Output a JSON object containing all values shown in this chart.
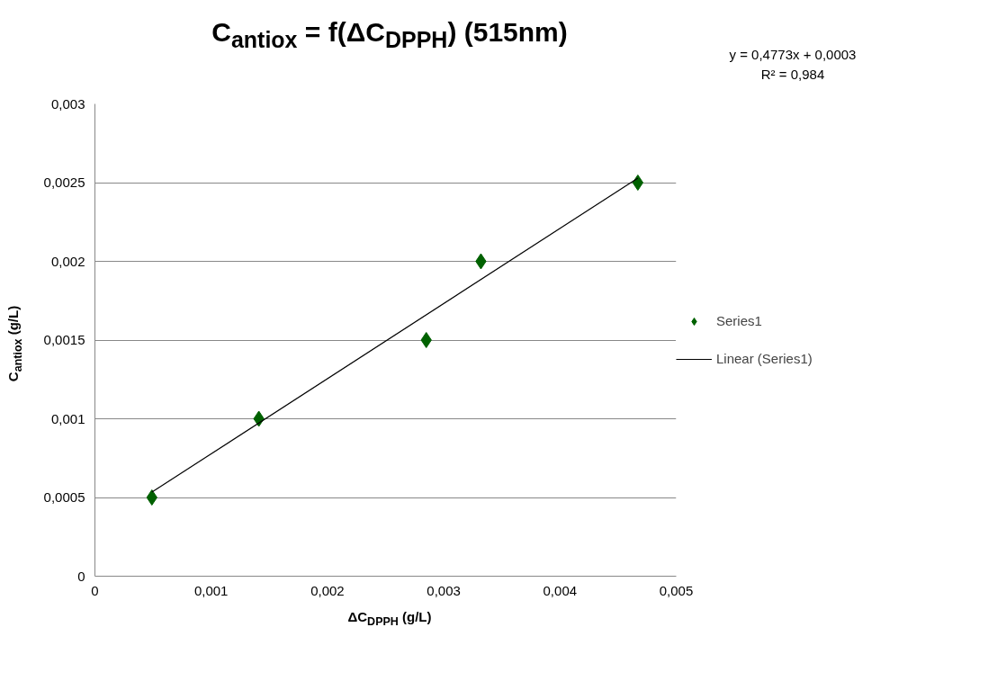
{
  "chart_data": {
    "type": "scatter",
    "title": "C$_{antiox}$ = f(ΔC$_{DPPH}$) (515nm)",
    "xlabel": "ΔC$_{DPPH}$ (g/L)",
    "ylabel": "C$_{antiox}$ (g/L)",
    "series": [
      {
        "name": "Series1",
        "color": "#006100",
        "marker": "diamond",
        "x": [
          0.00049,
          0.00141,
          0.00285,
          0.00332,
          0.00467
        ],
        "values": [
          0.0005,
          0.001,
          0.0015,
          0.002,
          0.0025
        ]
      },
      {
        "name": "Linear (Series1)",
        "type": "line",
        "color": "#000000",
        "line_style": "solid",
        "x": [
          0.00049,
          0.00467
        ],
        "values": [
          0.000534,
          0.002529
        ]
      }
    ],
    "annotations": [
      "y = 0,4773x + 0,0003",
      "R² = 0,984"
    ],
    "xlim": [
      0,
      0.005
    ],
    "ylim": [
      0,
      0.003
    ],
    "xticks": [
      0,
      {
        "value": 0.001,
        "label": "0,001"
      },
      {
        "value": 0.002,
        "label": "0,002"
      },
      {
        "value": 0.003,
        "label": "0,003"
      },
      {
        "value": 0.004,
        "label": "0,004"
      },
      {
        "value": 0.005,
        "label": "0,005"
      }
    ],
    "yticks": [
      0,
      {
        "value": 0.0005,
        "label": "0,0005"
      },
      {
        "value": 0.001,
        "label": "0,001"
      },
      {
        "value": 0.0015,
        "label": "0,0015"
      },
      {
        "value": 0.002,
        "label": "0,002"
      },
      {
        "value": 0.0025,
        "label": "0,0025"
      },
      {
        "value": 0.003,
        "label": "0,003"
      }
    ],
    "grid": "y",
    "legend": "right"
  }
}
